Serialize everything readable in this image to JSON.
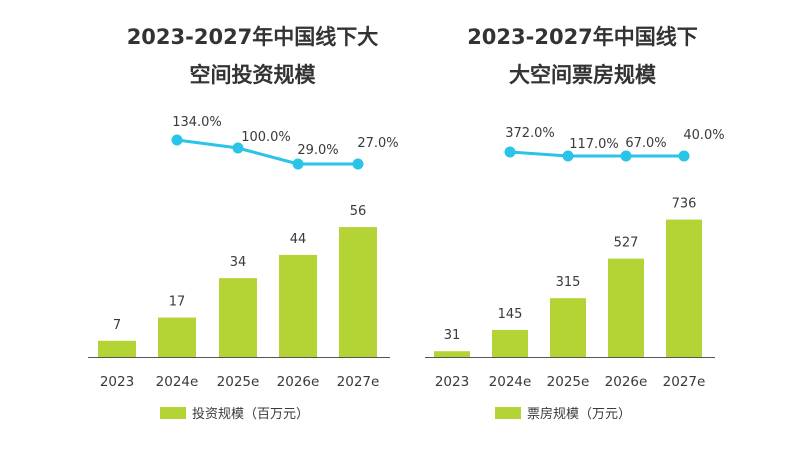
{
  "colors": {
    "bar": "#b4d334",
    "line": "#29c4e8",
    "text": "#3a3a3a",
    "title": "#333333",
    "axis": "#555555"
  },
  "chart_data": [
    {
      "type": "bar",
      "title_lines": [
        "2023-2027年中国线下大",
        "空间投资规模"
      ],
      "categories": [
        "2023",
        "2024e",
        "2025e",
        "2026e",
        "2027e"
      ],
      "series": [
        {
          "name": "投资规模（百万元）",
          "type": "bar",
          "values": [
            7,
            17,
            34,
            44,
            56
          ]
        },
        {
          "type": "line",
          "x": [
            "2024e",
            "2025e",
            "2026e",
            "2027e"
          ],
          "values": [
            134.0,
            100.0,
            29.0,
            27.0
          ]
        }
      ],
      "bar_labels": [
        "7",
        "17",
        "34",
        "44",
        "56"
      ],
      "line_labels": [
        "134.0%",
        "100.0%",
        "29.0%",
        "27.0%"
      ],
      "legend": "投资规模（百万元）",
      "legend_position": "bottom",
      "grid": false
    },
    {
      "type": "bar",
      "title_lines": [
        "2023-2027年中国线下",
        "大空间票房规模"
      ],
      "categories": [
        "2023",
        "2024e",
        "2025e",
        "2026e",
        "2027e"
      ],
      "series": [
        {
          "name": "票房规模（万元）",
          "type": "bar",
          "values": [
            31,
            145,
            315,
            527,
            736
          ]
        },
        {
          "type": "line",
          "x": [
            "2024e",
            "2025e",
            "2026e",
            "2027e"
          ],
          "values": [
            372.0,
            117.0,
            67.0,
            40.0
          ]
        }
      ],
      "bar_labels": [
        "31",
        "145",
        "315",
        "527",
        "736"
      ],
      "line_labels": [
        "372.0%",
        "117.0%",
        "67.0%",
        "40.0%"
      ],
      "legend": "票房规模（万元）",
      "legend_position": "bottom",
      "grid": false
    }
  ]
}
